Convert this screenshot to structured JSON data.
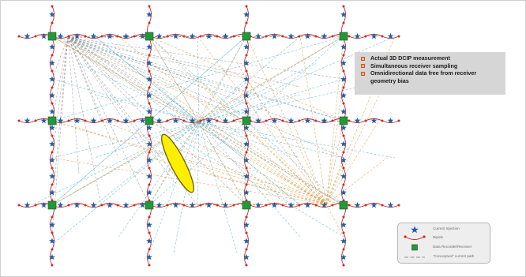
{
  "callout": {
    "items": [
      "Actual 3D DCIP measurement",
      "Simultaneous receiver sampling",
      "Omnidirectional data free from receiver geometry bias"
    ]
  },
  "legend": {
    "items": [
      {
        "symbol": "star-icon",
        "label": "Current Injection"
      },
      {
        "symbol": "dipole-icon",
        "label": "Dipole"
      },
      {
        "symbol": "receiver-square-icon",
        "label": "Data Recorder/Receiver"
      },
      {
        "symbol": "dashed-line-icon",
        "label": "\"Conceptual\" current path"
      }
    ]
  },
  "colors": {
    "receiver": "#1f9a3a",
    "dipole": "#cc2b2b",
    "star": "#1f5fa6",
    "path_blue": "#4fb0d9",
    "path_orange": "#e0953a",
    "path_gray": "#8e8e8e",
    "anomaly_fill": "#ffee00",
    "anomaly_stroke": "#6f6000"
  }
}
